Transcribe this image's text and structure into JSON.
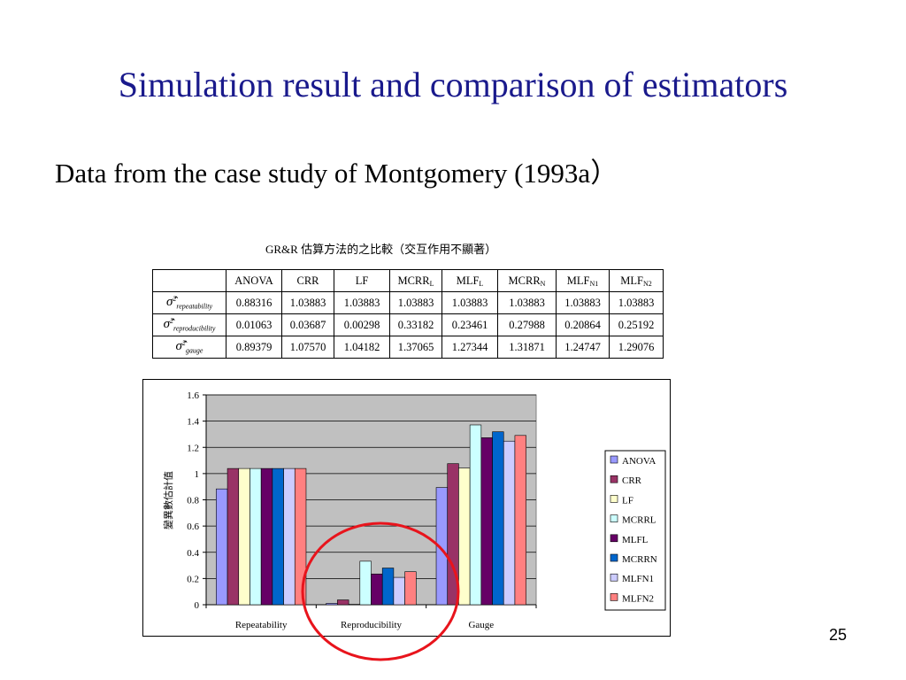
{
  "slide": {
    "title": "Simulation result and comparison of estimators",
    "subtitle": "Data from the case study of Montgomery (1993a）",
    "page_number": "25"
  },
  "table": {
    "caption": "GR&R 估算方法的之比較（交互作用不顯著）",
    "columns": [
      {
        "main": "ANOVA",
        "sub": ""
      },
      {
        "main": "CRR",
        "sub": ""
      },
      {
        "main": "LF",
        "sub": ""
      },
      {
        "main": "MCRR",
        "sub": "L"
      },
      {
        "main": "MLF",
        "sub": "L"
      },
      {
        "main": "MCRR",
        "sub": "N"
      },
      {
        "main": "MLF",
        "sub": "N1"
      },
      {
        "main": "MLF",
        "sub": "N2"
      }
    ],
    "rows": [
      {
        "symbol": "σ̂",
        "sup": "2",
        "sub": "repeatability",
        "values": [
          "0.88316",
          "1.03883",
          "1.03883",
          "1.03883",
          "1.03883",
          "1.03883",
          "1.03883",
          "1.03883"
        ]
      },
      {
        "symbol": "σ̂",
        "sup": "2",
        "sub": "reproducibility",
        "values": [
          "0.01063",
          "0.03687",
          "0.00298",
          "0.33182",
          "0.23461",
          "0.27988",
          "0.20864",
          "0.25192"
        ]
      },
      {
        "symbol": "σ̂",
        "sup": "2",
        "sub": "gauge",
        "values": [
          "0.89379",
          "1.07570",
          "1.04182",
          "1.37065",
          "1.27344",
          "1.31871",
          "1.24747",
          "1.29076"
        ]
      }
    ]
  },
  "chart_data": {
    "type": "bar",
    "categories": [
      "Repeatability",
      "Reproducibility",
      "Gauge"
    ],
    "ylabel": "變異數估計值",
    "xlabel": "",
    "ylim": [
      0,
      1.6
    ],
    "yticks": [
      "0",
      "0.2",
      "0.4",
      "0.6",
      "0.8",
      "1",
      "1.2",
      "1.4",
      "1.6"
    ],
    "grid": true,
    "legend_position": "right",
    "plot_background": "#c0c0c0",
    "series": [
      {
        "name": "ANOVA",
        "color": "#9999ff",
        "values": [
          0.88316,
          0.01063,
          0.89379
        ]
      },
      {
        "name": "CRR",
        "color": "#993366",
        "values": [
          1.03883,
          0.03687,
          1.0757
        ]
      },
      {
        "name": "LF",
        "color": "#ffffcc",
        "values": [
          1.03883,
          0.00298,
          1.04182
        ]
      },
      {
        "name": "MCRRL",
        "color": "#ccffff",
        "values": [
          1.03883,
          0.33182,
          1.37065
        ]
      },
      {
        "name": "MLFL",
        "color": "#660066",
        "values": [
          1.03883,
          0.23461,
          1.27344
        ]
      },
      {
        "name": "MCRRN",
        "color": "#0066cc",
        "values": [
          1.03883,
          0.27988,
          1.31871
        ]
      },
      {
        "name": "MLFN1",
        "color": "#ccccff",
        "values": [
          1.03883,
          0.20864,
          1.24747
        ]
      },
      {
        "name": "MLFN2",
        "color": "#ff8080",
        "values": [
          1.03883,
          0.25192,
          1.29076
        ]
      }
    ],
    "annotation": {
      "shape": "ellipse",
      "color": "#e8141c",
      "target": "Reproducibility"
    }
  }
}
